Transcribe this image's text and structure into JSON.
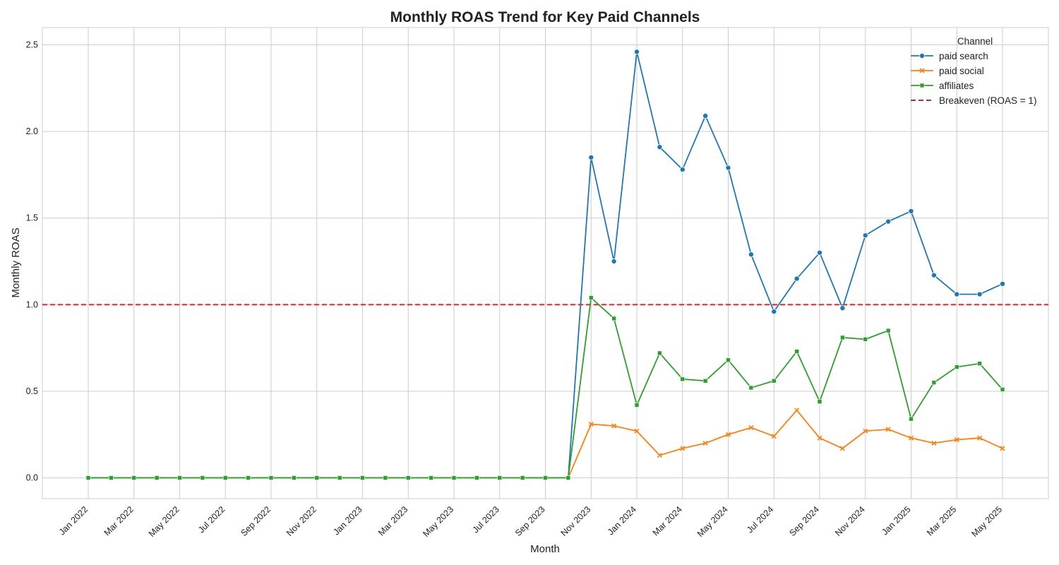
{
  "chart_data": {
    "type": "line",
    "title": "Monthly ROAS Trend for Key Paid Channels",
    "xlabel": "Month",
    "ylabel": "Monthly ROAS",
    "ylim": [
      -0.12,
      2.6
    ],
    "yticks": [
      "0.0",
      "0.5",
      "1.0",
      "1.5",
      "2.0",
      "2.5"
    ],
    "grid": true,
    "legend_title": "Channel",
    "legend_position": "top-right",
    "x": [
      "2022-01",
      "2022-02",
      "2022-03",
      "2022-04",
      "2022-05",
      "2022-06",
      "2022-07",
      "2022-08",
      "2022-09",
      "2022-10",
      "2022-11",
      "2022-12",
      "2023-01",
      "2023-02",
      "2023-03",
      "2023-04",
      "2023-05",
      "2023-06",
      "2023-07",
      "2023-08",
      "2023-09",
      "2023-10",
      "2023-11",
      "2023-12",
      "2024-01",
      "2024-02",
      "2024-03",
      "2024-04",
      "2024-05",
      "2024-06",
      "2024-07",
      "2024-08",
      "2024-09",
      "2024-10",
      "2024-11",
      "2024-12",
      "2025-01",
      "2025-02",
      "2025-03",
      "2025-04",
      "2025-05"
    ],
    "xtick_labels": [
      "Jan 2022",
      "Mar 2022",
      "May 2022",
      "Jul 2022",
      "Sep 2022",
      "Nov 2022",
      "Jan 2023",
      "Mar 2023",
      "May 2023",
      "Jul 2023",
      "Sep 2023",
      "Nov 2023",
      "Jan 2024",
      "Mar 2024",
      "May 2024",
      "Jul 2024",
      "Sep 2024",
      "Nov 2024",
      "Jan 2025",
      "Mar 2025",
      "May 2025"
    ],
    "series": [
      {
        "name": "paid search",
        "color": "#1f77b4",
        "marker": "circle",
        "values": [
          0,
          0,
          0,
          0,
          0,
          0,
          0,
          0,
          0,
          0,
          0,
          0,
          0,
          0,
          0,
          0,
          0,
          0,
          0,
          0,
          0,
          0,
          1.85,
          1.25,
          2.46,
          1.91,
          1.78,
          2.09,
          1.79,
          1.29,
          0.96,
          1.15,
          1.3,
          0.98,
          1.4,
          1.48,
          1.54,
          1.17,
          1.06,
          1.06,
          1.12
        ]
      },
      {
        "name": "paid social",
        "color": "#ff7f0e",
        "marker": "x",
        "values": [
          0,
          0,
          0,
          0,
          0,
          0,
          0,
          0,
          0,
          0,
          0,
          0,
          0,
          0,
          0,
          0,
          0,
          0,
          0,
          0,
          0,
          0,
          0.31,
          0.3,
          0.27,
          0.13,
          0.17,
          0.2,
          0.25,
          0.29,
          0.24,
          0.39,
          0.23,
          0.17,
          0.27,
          0.28,
          0.23,
          0.2,
          0.22,
          0.23,
          0.17
        ]
      },
      {
        "name": "affiliates",
        "color": "#2ca02c",
        "marker": "square",
        "values": [
          0,
          0,
          0,
          0,
          0,
          0,
          0,
          0,
          0,
          0,
          0,
          0,
          0,
          0,
          0,
          0,
          0,
          0,
          0,
          0,
          0,
          0,
          1.04,
          0.92,
          0.42,
          0.72,
          0.57,
          0.56,
          0.68,
          0.52,
          0.56,
          0.73,
          0.44,
          0.81,
          0.8,
          0.85,
          0.34,
          0.55,
          0.64,
          0.66,
          0.51
        ]
      }
    ],
    "reference_line": {
      "name": "Breakeven (ROAS = 1)",
      "y": 1.0,
      "color": "#d62728",
      "style": "dashed"
    }
  }
}
